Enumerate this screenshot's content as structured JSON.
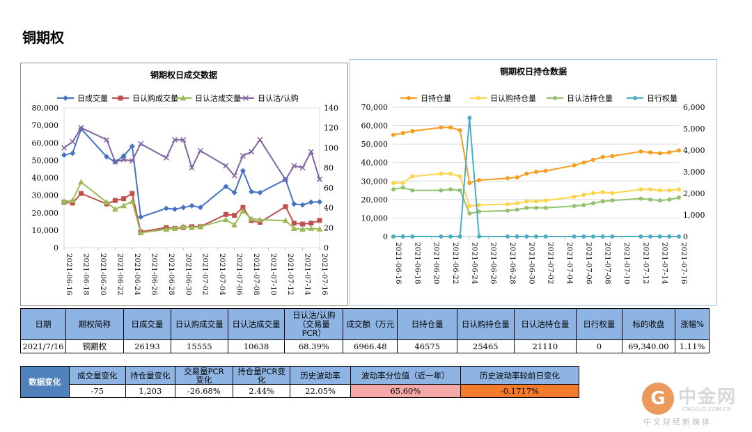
{
  "page_title": "铜期权",
  "chart_data": [
    {
      "type": "line",
      "title": "铜期权日成交数据",
      "x": [
        "2021-06-16",
        "2021-06-17",
        "2021-06-18",
        "2021-06-21",
        "2021-06-22",
        "2021-06-23",
        "2021-06-24",
        "2021-06-25",
        "2021-06-28",
        "2021-06-29",
        "2021-06-30",
        "2021-07-01",
        "2021-07-02",
        "2021-07-05",
        "2021-07-06",
        "2021-07-07",
        "2021-07-08",
        "2021-07-09",
        "2021-07-12",
        "2021-07-13",
        "2021-07-14",
        "2021-07-15",
        "2021-07-16"
      ],
      "x_tick_labels": [
        "2021-06-16",
        "2021-06-18",
        "2021-06-20",
        "2021-06-22",
        "2021-06-24",
        "2021-06-26",
        "2021-06-28",
        "2021-06-30",
        "2021-07-02",
        "2021-07-04",
        "2021-07-06",
        "2021-07-08",
        "2021-07-10",
        "2021-07-12",
        "2021-07-14",
        "2021-07-16"
      ],
      "y_left_ticks": [
        "0",
        "10,000",
        "20,000",
        "30,000",
        "40,000",
        "50,000",
        "60,000",
        "70,000",
        "80,000"
      ],
      "y_right_ticks": [
        "0",
        "20",
        "40",
        "60",
        "80",
        "100",
        "120",
        "140"
      ],
      "ylim_left": [
        0,
        80000
      ],
      "ylim_right": [
        0,
        140
      ],
      "legend_position": "top",
      "series": [
        {
          "name": "日成交量",
          "axis": "left",
          "color": "#4472c4",
          "marker": "diamond",
          "values": [
            53000,
            54000,
            68000,
            52000,
            49000,
            52500,
            58000,
            17500,
            22500,
            22000,
            23000,
            24000,
            23000,
            35000,
            31500,
            44000,
            32000,
            31500,
            39000,
            25000,
            24500,
            26000,
            26193
          ]
        },
        {
          "name": "日认购成交量",
          "axis": "left",
          "color": "#c0504d",
          "marker": "square",
          "values": [
            26000,
            25500,
            31000,
            25000,
            27000,
            28000,
            31000,
            9000,
            11500,
            11000,
            11500,
            12000,
            12000,
            19000,
            18500,
            23000,
            15500,
            14500,
            23500,
            14000,
            13500,
            14000,
            15555
          ]
        },
        {
          "name": "日认沽成交量",
          "axis": "left",
          "color": "#9bbb59",
          "marker": "triangle",
          "values": [
            26500,
            27000,
            37500,
            26000,
            22000,
            24000,
            26500,
            8500,
            10500,
            11000,
            12000,
            11500,
            12000,
            16000,
            13000,
            21000,
            16500,
            16000,
            15500,
            11000,
            10500,
            11000,
            10638
          ]
        },
        {
          "name": "日认沽/认购",
          "axis": "right",
          "color": "#8064a2",
          "marker": "x",
          "values": [
            100,
            106,
            120,
            108,
            86,
            88,
            87,
            104,
            90,
            108,
            108,
            80,
            97,
            82,
            72,
            92,
            96,
            108,
            68,
            82,
            80,
            96,
            68.39
          ]
        }
      ]
    },
    {
      "type": "line",
      "title": "铜期权日持仓数据",
      "x": [
        "2021-06-16",
        "2021-06-17",
        "2021-06-18",
        "2021-06-21",
        "2021-06-22",
        "2021-06-23",
        "2021-06-24",
        "2021-06-25",
        "2021-06-28",
        "2021-06-29",
        "2021-06-30",
        "2021-07-01",
        "2021-07-02",
        "2021-07-05",
        "2021-07-06",
        "2021-07-07",
        "2021-07-08",
        "2021-07-09",
        "2021-07-12",
        "2021-07-13",
        "2021-07-14",
        "2021-07-15",
        "2021-07-16"
      ],
      "x_tick_labels": [
        "2021-06-16",
        "2021-06-18",
        "2021-06-20",
        "2021-06-22",
        "2021-06-24",
        "2021-06-26",
        "2021-06-28",
        "2021-06-30",
        "2021-07-02",
        "2021-07-04",
        "2021-07-06",
        "2021-07-08",
        "2021-07-10",
        "2021-07-12",
        "2021-07-14",
        "2021-07-16"
      ],
      "y_left_ticks": [
        "0",
        "10,000",
        "20,000",
        "30,000",
        "40,000",
        "50,000",
        "60,000",
        "70,000"
      ],
      "y_right_ticks": [
        "0",
        "1,000",
        "2,000",
        "3,000",
        "4,000",
        "5,000",
        "6,000"
      ],
      "ylim_left": [
        0,
        70000
      ],
      "ylim_right": [
        0,
        6000
      ],
      "legend_position": "top",
      "series": [
        {
          "name": "日持仓量",
          "axis": "left",
          "color": "#f79c1c",
          "marker": "circle",
          "values": [
            55000,
            56000,
            57000,
            59000,
            59000,
            57500,
            29000,
            30500,
            31500,
            32000,
            34000,
            35000,
            35500,
            38500,
            40000,
            41500,
            43000,
            43500,
            46000,
            45500,
            45000,
            45500,
            46575
          ]
        },
        {
          "name": "日认购持仓量",
          "axis": "left",
          "color": "#ffd447",
          "marker": "circle",
          "values": [
            29000,
            29000,
            32500,
            34000,
            34000,
            32500,
            16500,
            17000,
            17500,
            18000,
            19000,
            19000,
            19500,
            21500,
            22500,
            23500,
            24000,
            23500,
            25500,
            25500,
            25000,
            25000,
            25465
          ]
        },
        {
          "name": "日认沽持仓量",
          "axis": "left",
          "color": "#92c26e",
          "marker": "circle",
          "values": [
            25500,
            26500,
            25000,
            25000,
            25500,
            25000,
            12500,
            13500,
            14000,
            14500,
            15500,
            15500,
            15500,
            16500,
            17000,
            18000,
            19000,
            19500,
            20500,
            20000,
            19500,
            20000,
            21110
          ]
        },
        {
          "name": "日行权量",
          "axis": "right",
          "color": "#4bacc6",
          "marker": "circle",
          "values": [
            0,
            0,
            0,
            0,
            0,
            0,
            5500,
            0,
            0,
            0,
            0,
            0,
            0,
            0,
            0,
            0,
            0,
            0,
            0,
            0,
            0,
            0,
            0
          ]
        }
      ]
    }
  ],
  "table1": {
    "headers": [
      "日期",
      "期权简称",
      "日成交量",
      "日认购成交量",
      "日认沽成交量",
      "日认沽/认购\n（交易量\nPCR）",
      "成交额（万元",
      "日持仓量",
      "日认购持仓量",
      "日认沽持仓量",
      "日行权量",
      "标的收盘",
      "涨幅%"
    ],
    "values": [
      "2021/7/16",
      "铜期权",
      "26193",
      "15555",
      "10638",
      "68.39%",
      "6966.48",
      "46575",
      "25465",
      "21110",
      "0",
      "69,340.00",
      "1.11%"
    ]
  },
  "table2": {
    "side_label": "数据变化",
    "headers": [
      "成交量变化",
      "持仓量变化",
      "交易量PCR\n变化",
      "持仓量PCR变\n化",
      "历史波动率",
      "波动率分位值（近一年）",
      "历史波动率较前日变化"
    ],
    "values": [
      "-75",
      "1,203",
      "-26.68%",
      "2.44%",
      "22.05%",
      "65.60%",
      "-0.1717%"
    ]
  },
  "watermark": {
    "logo": "G",
    "name": "中金网",
    "domain": "CNGOLD.COM.CN",
    "slogan": "中文财经新媒体"
  }
}
